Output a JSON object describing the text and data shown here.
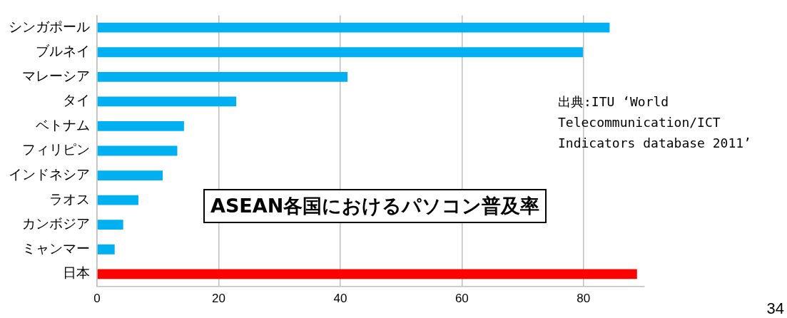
{
  "chart_data": {
    "type": "bar",
    "orientation": "horizontal",
    "title": "ASEAN各国におけるパソコン普及率",
    "categories": [
      "シンガポール",
      "ブルネイ",
      "マレーシア",
      "タイ",
      "ベトナム",
      "フィリピン",
      "インドネシア",
      "ラオス",
      "カンボジア",
      "ミャンマー",
      "日本"
    ],
    "values": [
      84.3,
      79.9,
      41.2,
      22.9,
      14.3,
      13.2,
      10.8,
      6.8,
      4.3,
      2.9,
      88.8
    ],
    "colors": [
      "#00b0f0",
      "#00b0f0",
      "#00b0f0",
      "#00b0f0",
      "#00b0f0",
      "#00b0f0",
      "#00b0f0",
      "#00b0f0",
      "#00b0f0",
      "#00b0f0",
      "#ff0000"
    ],
    "xlim": [
      0,
      90
    ],
    "xticks": [
      0,
      20,
      40,
      60,
      80
    ],
    "grid": "x",
    "legend": false,
    "annotations": [
      "出典:ITU ‘World Telecommunication/ICT Indicators database 2011’",
      "34"
    ]
  }
}
